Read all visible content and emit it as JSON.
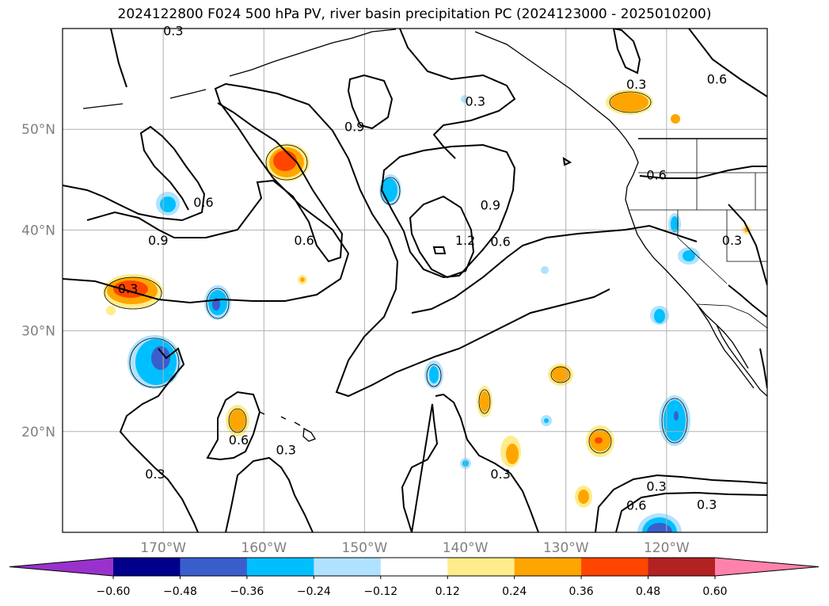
{
  "title": "2024122800 F024 500 hPa PV, river basin precipitation PC (2024123000 - 2025010200)",
  "map": {
    "lon_ticks": [
      {
        "lon": -170,
        "label": "170°W"
      },
      {
        "lon": -160,
        "label": "160°W"
      },
      {
        "lon": -150,
        "label": "150°W"
      },
      {
        "lon": -140,
        "label": "140°W"
      },
      {
        "lon": -130,
        "label": "130°W"
      },
      {
        "lon": -120,
        "label": "120°W"
      }
    ],
    "lat_ticks": [
      {
        "lat": 50,
        "label": "50°N"
      },
      {
        "lat": 40,
        "label": "40°N"
      },
      {
        "lat": 30,
        "label": "30°N"
      },
      {
        "lat": 20,
        "label": "20°N"
      }
    ],
    "contour_labels": [
      {
        "text": "0.3",
        "lon": -169.0,
        "lat": 59.8
      },
      {
        "text": "0.3",
        "lon": -123.0,
        "lat": 54.5
      },
      {
        "text": "0.3",
        "lon": -139.0,
        "lat": 52.8
      },
      {
        "text": "0.6",
        "lon": -115.0,
        "lat": 55.0
      },
      {
        "text": "0.9",
        "lon": -151.0,
        "lat": 50.3
      },
      {
        "text": "0.6",
        "lon": -166.0,
        "lat": 42.8
      },
      {
        "text": "0.9",
        "lon": -170.5,
        "lat": 39.0
      },
      {
        "text": "0.6",
        "lon": -156.0,
        "lat": 39.0
      },
      {
        "text": "0.9",
        "lon": -137.5,
        "lat": 42.5
      },
      {
        "text": "1.2",
        "lon": -140.0,
        "lat": 39.0
      },
      {
        "text": "0.6",
        "lon": -136.5,
        "lat": 38.9
      },
      {
        "text": "0.6",
        "lon": -121.0,
        "lat": 45.5
      },
      {
        "text": "0.3",
        "lon": -113.5,
        "lat": 39.0
      },
      {
        "text": "0.3",
        "lon": -173.5,
        "lat": 34.2
      },
      {
        "text": "0.6",
        "lon": -162.5,
        "lat": 19.2
      },
      {
        "text": "0.3",
        "lon": -157.8,
        "lat": 18.2
      },
      {
        "text": "0.3",
        "lon": -170.8,
        "lat": 15.8
      },
      {
        "text": "0.3",
        "lon": -136.5,
        "lat": 15.8
      },
      {
        "text": "0.3",
        "lon": -121.0,
        "lat": 14.6
      },
      {
        "text": "0.6",
        "lon": -123.0,
        "lat": 12.7
      },
      {
        "text": "0.3",
        "lon": -116.0,
        "lat": 12.8
      }
    ]
  },
  "colorbar": {
    "levels": [
      "−0.60",
      "−0.48",
      "−0.36",
      "−0.24",
      "−0.12",
      "0.12",
      "0.24",
      "0.36",
      "0.48",
      "0.60"
    ],
    "colors": [
      "#9932cc",
      "#00008b",
      "#3a5fcd",
      "#00bfff",
      "#b0e2ff",
      "#ffffff",
      "#ffec8b",
      "#ffa500",
      "#ff4500",
      "#b22222",
      "#ff82ab"
    ]
  }
}
